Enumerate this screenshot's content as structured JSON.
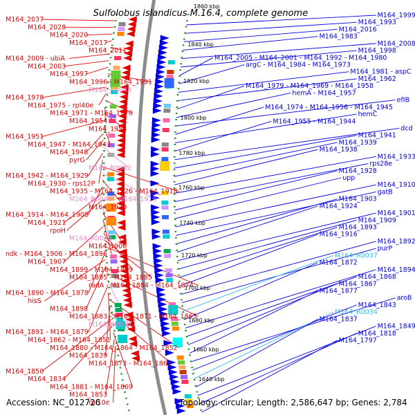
{
  "title": "Sulfolobus islandicus M.16.4, complete genome",
  "accession": "Accession: NC_012726",
  "topology_line": "Topology: circular; Length: 2,586,647 bp; Genes: 2,784",
  "colors": {
    "forward": "#0000e0",
    "reverse": "#e00000",
    "rna_forward": "#33bbee",
    "rna_reverse": "#ee88cc",
    "backbone": "#8c8c8c",
    "dots": "#1a8c1a"
  },
  "scale_labels": [
    "1860 kbp",
    "1840 kbp",
    "1820 kbp",
    "1800 kbp",
    "1780 kbp",
    "1760 kbp",
    "1740 kbp",
    "1720 kbp",
    "1700 kbp",
    "1680 kbp",
    "1660 kbp",
    "1640 kbp"
  ],
  "left_labels": [
    "M164_2037",
    "M164_2028",
    "M164_2020",
    "M164_2017",
    "M164_2011",
    "M164_2009 - ubiA",
    "M164_2003",
    "M164_1997",
    "M164_1996 - M164_1991",
    "M164_R0043",
    "M164_1978",
    "M164_1975 - rpl40e",
    "M164_1971 - M164_1970",
    "M164_1954",
    "M164_1953",
    "M164_1951",
    "M164_1947 - M164_1943",
    "M164_1948",
    "pyrG",
    "M164_R0042",
    "M164_1942 - M164_1929",
    "M164_1930 - rps12P",
    "M164_1935 - M164_1926 - M164_1918",
    "M164_R0040 - M164_1919",
    "M164_1920",
    "M164_1914 - M164_1908",
    "M164_1921",
    "rpoH",
    "M164_R0038",
    "M164_1900",
    "ndk - M164_1906 - M164_1896",
    "M164_1907",
    "M164_1899 - M164_1889",
    "M164_1895 - M164_1885",
    "radA - M164_1884 - M164_1874",
    "M164_1890 - M164_1878",
    "hisS",
    "M164_1898",
    "M164_1883 - M164_1871 - M164_1865",
    "M164_R0033",
    "M164_1891 - M164_1879",
    "M164_1862 - M164_1851",
    "M164_1880 - M164_1864 - M164_1852",
    "M164_1839",
    "M164_1873 - M164_1861",
    "M164_1850",
    "M164_1834",
    "M164_1881 - M164_1869",
    "M164_1853",
    "rpl10e"
  ],
  "right_labels": [
    "M164_1999",
    "M164_1993",
    "M164_2016",
    "M164_1983",
    "M164_2008",
    "M164_1998",
    "M164_2005 - M164_2001 - M164_1992 - M164_1980",
    "argC - M164_1984 - M164_1973",
    "M164_1981 - aspC",
    "M164_1962",
    "M164_1979 - M164_1969 - M164_1958",
    "hemA - M164_1957",
    "efIB",
    "M164_1974 - M164_1956 - M164_1945",
    "hemC",
    "M164_1955 - M164_1944",
    "dcd",
    "M164_1941",
    "M164_1939",
    "M164_1938",
    "M164_1933",
    "rps28e",
    "M164_1928",
    "upp",
    "M164_1910",
    "gatB",
    "M164_1903",
    "M164_1924",
    "M164_1901",
    "M164_1909",
    "M164_1893",
    "M164_1916",
    "M164_1892",
    "purP",
    "M164_R0037",
    "M164_1872",
    "M164_1894",
    "M164_1868",
    "M164_1867",
    "M164_1877",
    "aroB",
    "M164_1843",
    "M164_R0034",
    "M164_1837",
    "M164_1849",
    "M164_1818",
    "M164_1797"
  ]
}
